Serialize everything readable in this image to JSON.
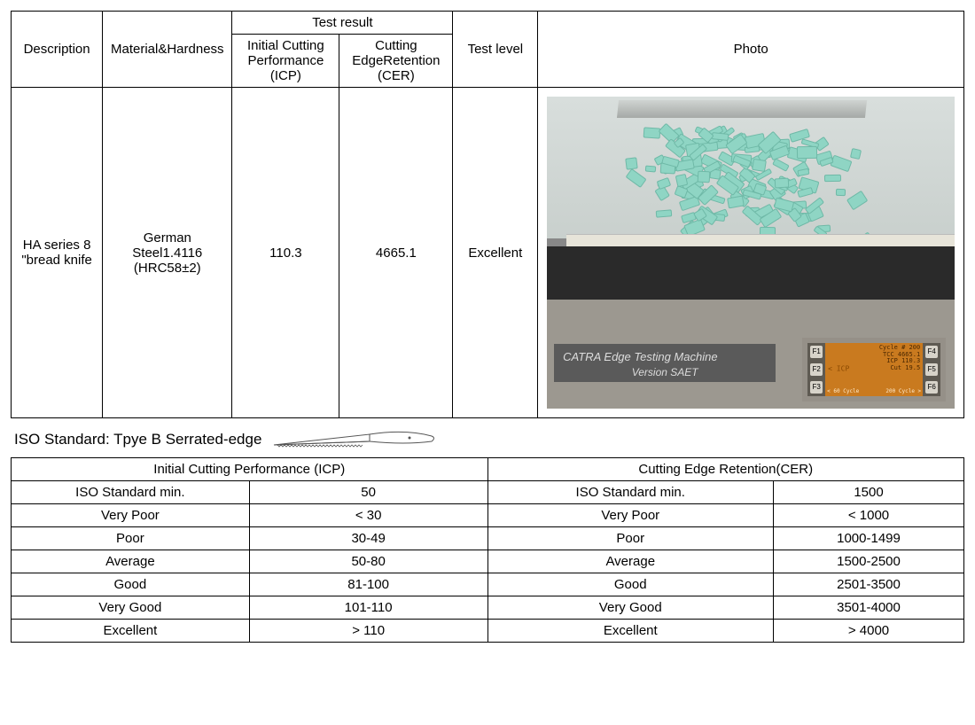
{
  "main_table": {
    "headers": {
      "description": "Description",
      "material": "Material&Hardness",
      "test_result": "Test result",
      "icp": "Initial Cutting Performance (ICP)",
      "cer": "Cutting EdgeRetention (CER)",
      "test_level": "Test level",
      "photo": "Photo"
    },
    "row": {
      "description": "HA series 8 \"bread knife",
      "material": "German Steel1.4116 (HRC58±2)",
      "icp": "110.3",
      "cer": "4665.1",
      "test_level": "Excellent"
    },
    "photo": {
      "label_line1": "CATRA Edge Testing Machine",
      "label_line2": "Version  SAET",
      "screen_lines": [
        "Cut   19.5",
        "ICP  110.3",
        "TCC 4665.1",
        "Cycle # 200"
      ],
      "screen_mid": "< ICP",
      "screen_bottom_left": "< 60 Cycle",
      "screen_bottom_right": "200 Cycle >",
      "btn_left": [
        "F1",
        "F2",
        "F3"
      ],
      "btn_right": [
        "F4",
        "F5",
        "F6"
      ],
      "chip_color": "#8fd5c4",
      "chip_border": "#6fb9a7"
    }
  },
  "iso_line": "ISO Standard: Tpye B Serrated-edge",
  "standards": {
    "icp_header": "Initial Cutting Performance  (ICP)",
    "cer_header": "Cutting Edge Retention(CER)",
    "rows": [
      {
        "label": "ISO Standard min.",
        "icp": "50",
        "cer": "1500"
      },
      {
        "label": "Very Poor",
        "icp": "< 30",
        "cer": "< 1000"
      },
      {
        "label": "Poor",
        "icp": "30-49",
        "cer": "1000-1499"
      },
      {
        "label": "Average",
        "icp": "50-80",
        "cer": "1500-2500"
      },
      {
        "label": "Good",
        "icp": "81-100",
        "cer": "2501-3500"
      },
      {
        "label": "Very Good",
        "icp": "101-110",
        "cer": "3501-4000"
      },
      {
        "label": "Excellent",
        "icp": "> 110",
        "cer": "> 4000"
      }
    ]
  }
}
